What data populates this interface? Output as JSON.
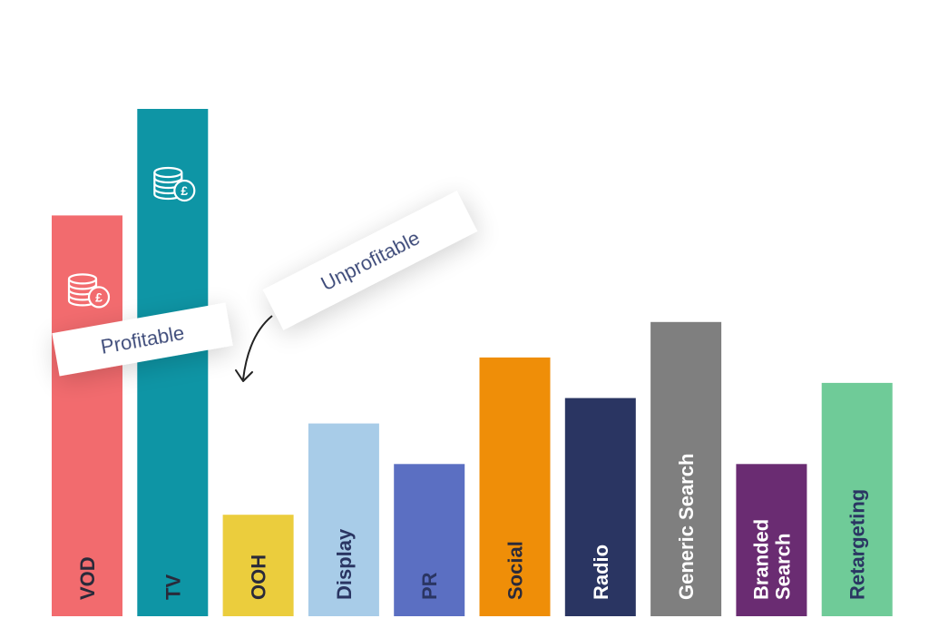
{
  "chart_data": {
    "type": "bar",
    "title": "",
    "xlabel": "",
    "ylabel": "",
    "ylim": [
      0,
      100
    ],
    "categories": [
      "VOD",
      "TV",
      "OOH",
      "Display",
      "PR",
      "Social",
      "Radio",
      "Generic Search",
      "Branded Search",
      "Retargeting"
    ],
    "labels": [
      [
        "VOD"
      ],
      [
        "TV"
      ],
      [
        "OOH"
      ],
      [
        "Display"
      ],
      [
        "PR"
      ],
      [
        "Social"
      ],
      [
        "Radio"
      ],
      [
        "Generic Search"
      ],
      [
        "Branded",
        "Search"
      ],
      [
        "Retargeting"
      ]
    ],
    "values": [
      79,
      100,
      20,
      38,
      30,
      51,
      43,
      58,
      30,
      46
    ],
    "colors": [
      "#f26b6e",
      "#0e95a5",
      "#ebcd3d",
      "#a8cce8",
      "#5b6fc2",
      "#ef8e08",
      "#2a3562",
      "#7f7f7f",
      "#6a2c72",
      "#6fcb98"
    ],
    "label_colors": [
      "#2a2a3a",
      "#2a2a3a",
      "#2a2a3a",
      "#2a3562",
      "#2a3562",
      "#2a2a3a",
      "#ffffff",
      "#ffffff",
      "#ffffff",
      "#2a3562"
    ],
    "icon_categories": [
      "VOD",
      "TV"
    ],
    "icon": "coins-pound-icon"
  },
  "annotations": {
    "profitable_label": "Profitable",
    "unprofitable_label": "Unprofitable",
    "arrow_icon": "curved-arrow-icon"
  },
  "colors": {
    "icon_stroke": "#ffffff",
    "annotation_text": "#3a4a7a",
    "arrow": "#222222"
  }
}
